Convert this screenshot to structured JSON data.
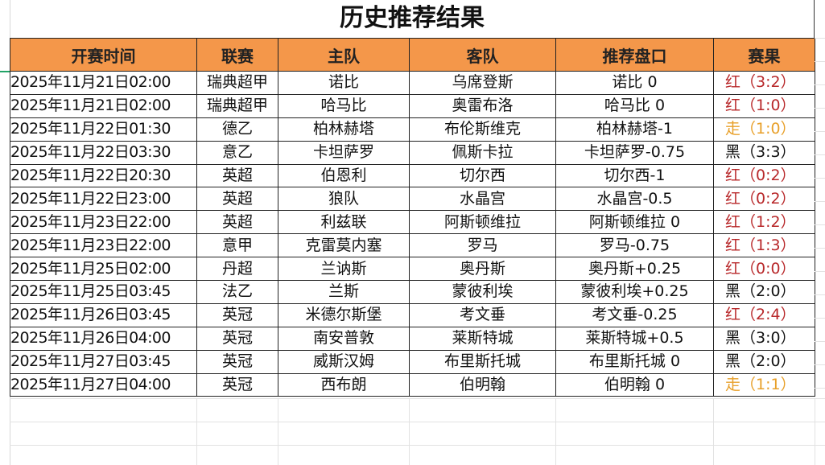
{
  "title": "历史推荐结果",
  "columns": [
    "开赛时间",
    "联赛",
    "主队",
    "客队",
    "推荐盘口",
    "赛果"
  ],
  "colors": {
    "header_bg": "#f4974a",
    "red": "#b8282a",
    "black": "#111111",
    "orange": "#e8a02a"
  },
  "rows": [
    {
      "time": "2025年11月21日02:00",
      "league": "瑞典超甲",
      "home": "诺比",
      "away": "乌席登斯",
      "pick": "诺比 0",
      "result": "红（3:2）",
      "status": "red"
    },
    {
      "time": "2025年11月21日02:00",
      "league": "瑞典超甲",
      "home": "哈马比",
      "away": "奥雷布洛",
      "pick": "哈马比 0",
      "result": "红（1:0）",
      "status": "red"
    },
    {
      "time": "2025年11月22日01:30",
      "league": "德乙",
      "home": "柏林赫塔",
      "away": "布伦斯维克",
      "pick": "柏林赫塔-1",
      "result": "走（1:0）",
      "status": "orange"
    },
    {
      "time": "2025年11月22日03:30",
      "league": "意乙",
      "home": "卡坦萨罗",
      "away": "佩斯卡拉",
      "pick": "卡坦萨罗-0.75",
      "result": "黑（3:3）",
      "status": "black"
    },
    {
      "time": "2025年11月22日20:30",
      "league": "英超",
      "home": "伯恩利",
      "away": "切尔西",
      "pick": "切尔西-1",
      "result": "红（0:2）",
      "status": "red"
    },
    {
      "time": "2025年11月22日23:00",
      "league": "英超",
      "home": "狼队",
      "away": "水晶宫",
      "pick": "水晶宫-0.5",
      "result": "红（0:2）",
      "status": "red"
    },
    {
      "time": "2025年11月23日22:00",
      "league": "英超",
      "home": "利兹联",
      "away": "阿斯顿维拉",
      "pick": "阿斯顿维拉 0",
      "result": "红（1:2）",
      "status": "red"
    },
    {
      "time": "2025年11月23日22:00",
      "league": "意甲",
      "home": "克雷莫内塞",
      "away": "罗马",
      "pick": "罗马-0.75",
      "result": "红（1:3）",
      "status": "red"
    },
    {
      "time": "2025年11月25日02:00",
      "league": "丹超",
      "home": "兰讷斯",
      "away": "奥丹斯",
      "pick": "奥丹斯+0.25",
      "result": "红（0:0）",
      "status": "red"
    },
    {
      "time": "2025年11月25日03:45",
      "league": "法乙",
      "home": "兰斯",
      "away": "蒙彼利埃",
      "pick": "蒙彼利埃+0.25",
      "result": "黑（2:0）",
      "status": "black"
    },
    {
      "time": "2025年11月26日03:45",
      "league": "英冠",
      "home": "米德尔斯堡",
      "away": "考文垂",
      "pick": "考文垂-0.25",
      "result": "红（2:4）",
      "status": "red"
    },
    {
      "time": "2025年11月26日04:00",
      "league": "英冠",
      "home": "南安普敦",
      "away": "莱斯特城",
      "pick": "莱斯特城+0.5",
      "result": "黑（3:0）",
      "status": "black"
    },
    {
      "time": "2025年11月27日03:45",
      "league": "英冠",
      "home": "威斯汉姆",
      "away": "布里斯托城",
      "pick": "布里斯托城 0",
      "result": "黑（2:0）",
      "status": "black"
    },
    {
      "time": "2025年11月27日04:00",
      "league": "英冠",
      "home": "西布朗",
      "away": "伯明翰",
      "pick": "伯明翰 0",
      "result": "走（1:1）",
      "status": "orange"
    }
  ]
}
